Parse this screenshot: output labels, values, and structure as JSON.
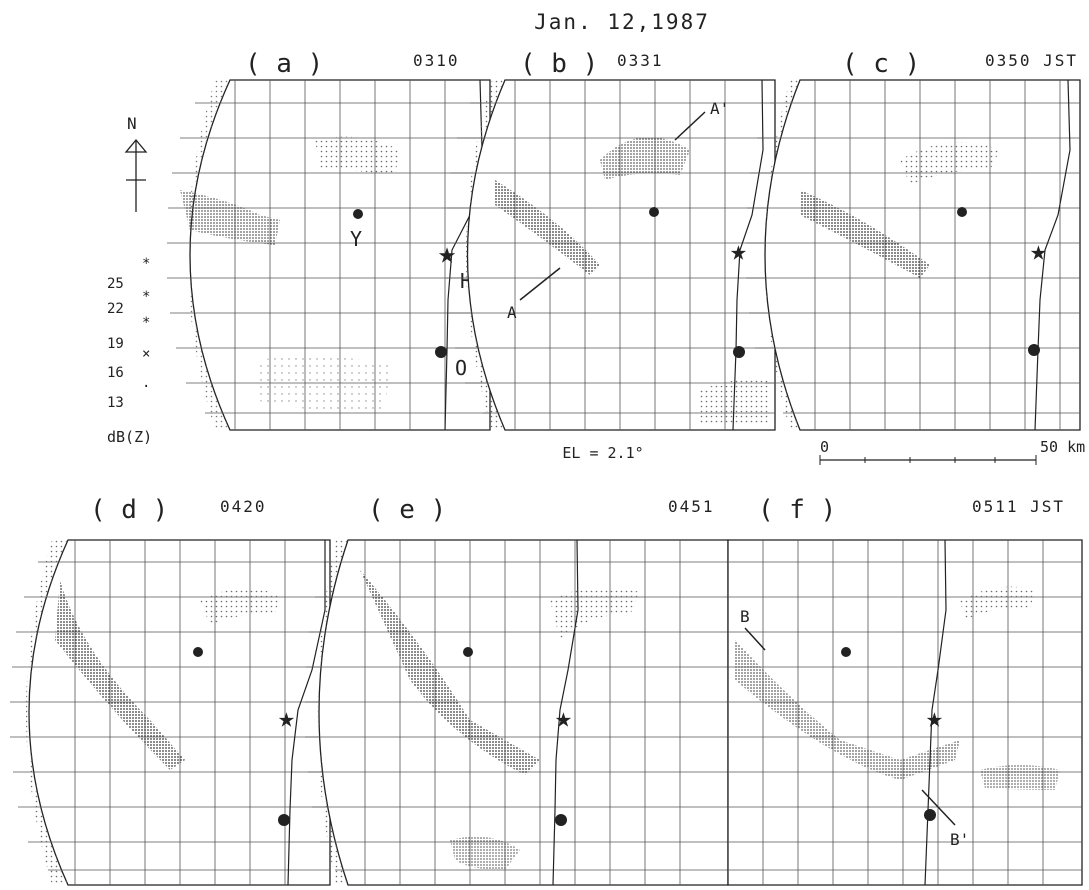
{
  "title": "Jan. 12,1987",
  "elevation": "EL = 2.1°",
  "scale_bar": {
    "start": "0",
    "end": "50 km"
  },
  "north_label": "N",
  "legend": {
    "unit": "dB(Z)",
    "levels": [
      "25",
      "22",
      "19",
      "16",
      "13"
    ],
    "symbols": [
      "*",
      "*",
      "*",
      "×",
      "·"
    ]
  },
  "stations": {
    "Y": "Y",
    "H": "H",
    "O": "O"
  },
  "cross_sections": {
    "A": "A",
    "A_prime": "A'",
    "B": "B",
    "B_prime": "B'"
  },
  "panels": [
    {
      "label": "( a )",
      "time": "0310"
    },
    {
      "label": "( b )",
      "time": "0331"
    },
    {
      "label": "( c )",
      "time": "0350 JST"
    },
    {
      "label": "( d )",
      "time": "0420"
    },
    {
      "label": "( e )",
      "time": "0451"
    },
    {
      "label": "( f )",
      "time": "0511  JST"
    }
  ],
  "colors": {
    "ink": "#222222",
    "echo": "#6b6b6b",
    "echo_dense": "#3a3a3a",
    "background": "#ffffff"
  }
}
